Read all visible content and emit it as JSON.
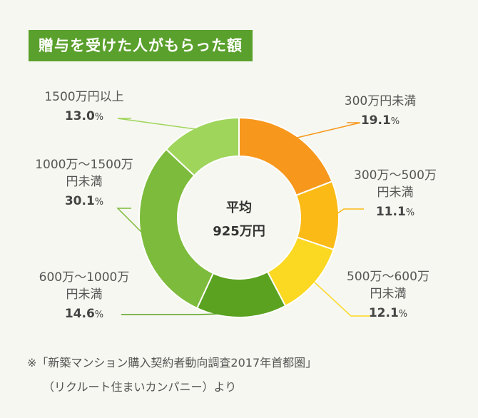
{
  "title": "贈与を受けた人がもらった額",
  "chart_data": {
    "type": "pie",
    "variant": "donut",
    "center_label": [
      "平均",
      "925万円"
    ],
    "unit": "%",
    "slices": [
      {
        "label": [
          "300万円未満"
        ],
        "value": 19.1,
        "display": "19.1",
        "color": "#f7981d"
      },
      {
        "label": [
          "300万～500万",
          "円未満"
        ],
        "value": 11.1,
        "display": "11.1",
        "color": "#fbba15"
      },
      {
        "label": [
          "500万～600万",
          "円未満"
        ],
        "value": 12.1,
        "display": "12.1",
        "color": "#fbd821"
      },
      {
        "label": [
          "600万～1000万",
          "円未満"
        ],
        "value": 14.6,
        "display": "14.6",
        "color": "#5aa21f"
      },
      {
        "label": [
          "1000万～1500万",
          "円未満"
        ],
        "value": 30.1,
        "display": "30.1",
        "color": "#7dbb3c"
      },
      {
        "label": [
          "1500万円以上"
        ],
        "value": 13.0,
        "display": "13.0",
        "color": "#9fd55b"
      }
    ]
  },
  "source": {
    "line1": "※「新築マンション購入契約者動向調査2017年首都圏」",
    "line2": "（リクルート住まいカンパニー）より"
  }
}
